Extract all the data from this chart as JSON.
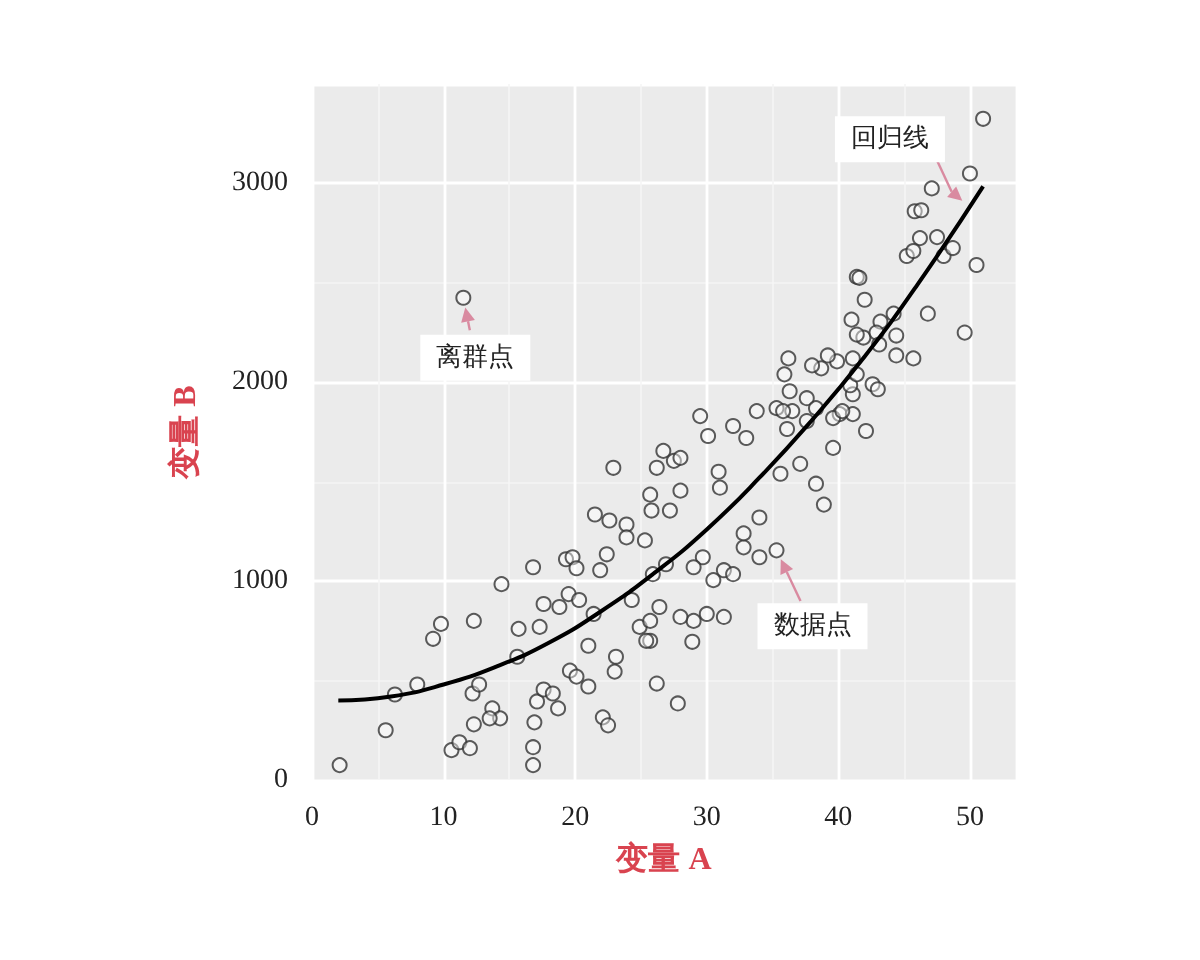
{
  "chart_data": {
    "type": "scatter",
    "xlabel": "变量 A",
    "ylabel": "变量 B",
    "xlim": [
      0,
      53.5
    ],
    "ylim": [
      0,
      3500
    ],
    "xticks": [
      0,
      10,
      20,
      30,
      40,
      50
    ],
    "yticks": [
      0,
      1000,
      2000,
      3000
    ],
    "grid": true,
    "marker": "circle",
    "annotations": [
      {
        "text": "离群点",
        "x": 11.5,
        "y": 2425
      },
      {
        "text": "回归线",
        "x": 50,
        "y": 2880
      },
      {
        "text": "数据点",
        "x": 35.3,
        "y": 1155
      }
    ],
    "series": [
      {
        "color": "#333333",
        "x": [
          2.1,
          5.6,
          6.3,
          8.0,
          9.2,
          9.8,
          12.3,
          10.6,
          11.2,
          12.0,
          12.3,
          12.2,
          12.7,
          13.7,
          14.3,
          13.5,
          14.4,
          15.7,
          15.6,
          16.8,
          16.8,
          16.9,
          16.8,
          17.6,
          17.3,
          17.1,
          17.6,
          18.3,
          18.7,
          18.8,
          19.3,
          19.8,
          20.1,
          19.5,
          20.3,
          19.6,
          20.1,
          21.0,
          21.0,
          21.4,
          21.5,
          22.1,
          22.5,
          21.9,
          22.4,
          22.9,
          22.6,
          23.1,
          23.0,
          23.9,
          23.9,
          24.3,
          24.9,
          25.3,
          25.7,
          25.8,
          26.2,
          26.7,
          26.2,
          26.4,
          25.7,
          25.9,
          27.5,
          27.8,
          29.5,
          30.1,
          28.0,
          32.0,
          33.0,
          33.8,
          35.3,
          36.5,
          36.1,
          37.6,
          39.6,
          38.9,
          42.1,
          40.1,
          41.1,
          38.3,
          37.1,
          35.6,
          34.0,
          35.3,
          34.0,
          32.8,
          32.8,
          31.0,
          30.9,
          28.0,
          27.2,
          29.7,
          31.3,
          32.0,
          30.5,
          29.0,
          26.9,
          30.0,
          31.3,
          29.0,
          28.0,
          25.7,
          25.4,
          28.9,
          51.0,
          50.0,
          47.1,
          45.8,
          46.3,
          46.2,
          47.5,
          45.2,
          45.7,
          48.0,
          48.7,
          50.5,
          41.4,
          41.6,
          42.0,
          46.8,
          49.6,
          41.0,
          43.2,
          44.2,
          41.9,
          41.4,
          42.9,
          44.4,
          45.7,
          44.4,
          43.1,
          39.9,
          39.2,
          38.7,
          38.0,
          36.2,
          35.9,
          36.3,
          35.8,
          37.6,
          38.3,
          39.6,
          40.3,
          41.1,
          40.9,
          42.6,
          43.0,
          41.4,
          41.1,
          11.5
        ],
        "values": [
          75,
          250,
          430,
          480,
          710,
          785,
          800,
          150,
          190,
          160,
          280,
          435,
          480,
          360,
          310,
          310,
          985,
          760,
          620,
          165,
          75,
          290,
          1070,
          885,
          770,
          395,
          455,
          435,
          360,
          870,
          1110,
          1120,
          1065,
          935,
          905,
          550,
          520,
          675,
          470,
          835,
          1335,
          315,
          275,
          1055,
          1135,
          1570,
          1305,
          620,
          545,
          1285,
          1220,
          905,
          770,
          1205,
          1435,
          1355,
          1570,
          1655,
          485,
          870,
          700,
          1035,
          1605,
          385,
          1830,
          1730,
          1620,
          1780,
          1720,
          1855,
          1870,
          1855,
          1765,
          1805,
          1670,
          1385,
          1755,
          1840,
          1840,
          1490,
          1590,
          1540,
          1320,
          1155,
          1120,
          1170,
          1240,
          1470,
          1550,
          1455,
          1355,
          1120,
          1055,
          1035,
          1005,
          1070,
          1085,
          835,
          820,
          800,
          820,
          800,
          700,
          695,
          3325,
          3050,
          2975,
          2860,
          2865,
          2725,
          2730,
          2635,
          2660,
          2635,
          2675,
          2590,
          2530,
          2525,
          2415,
          2345,
          2250,
          2315,
          2305,
          2345,
          2225,
          2240,
          2250,
          2235,
          2120,
          2135,
          2190,
          2105,
          2135,
          2070,
          2085,
          2120,
          2040,
          1955,
          1855,
          1920,
          1870,
          1820,
          1855,
          1940,
          1985,
          1990,
          1965,
          2040,
          2120,
          2425
        ]
      },
      {
        "type": "line",
        "color": "#000000",
        "marker": "none",
        "x": [
          2,
          6,
          10,
          14,
          18,
          22,
          26,
          30,
          34,
          38,
          42,
          46,
          51
        ],
        "values": [
          400,
          420,
          480,
          570,
          690,
          850,
          1040,
          1260,
          1520,
          1810,
          2130,
          2490,
          2985
        ]
      }
    ]
  }
}
